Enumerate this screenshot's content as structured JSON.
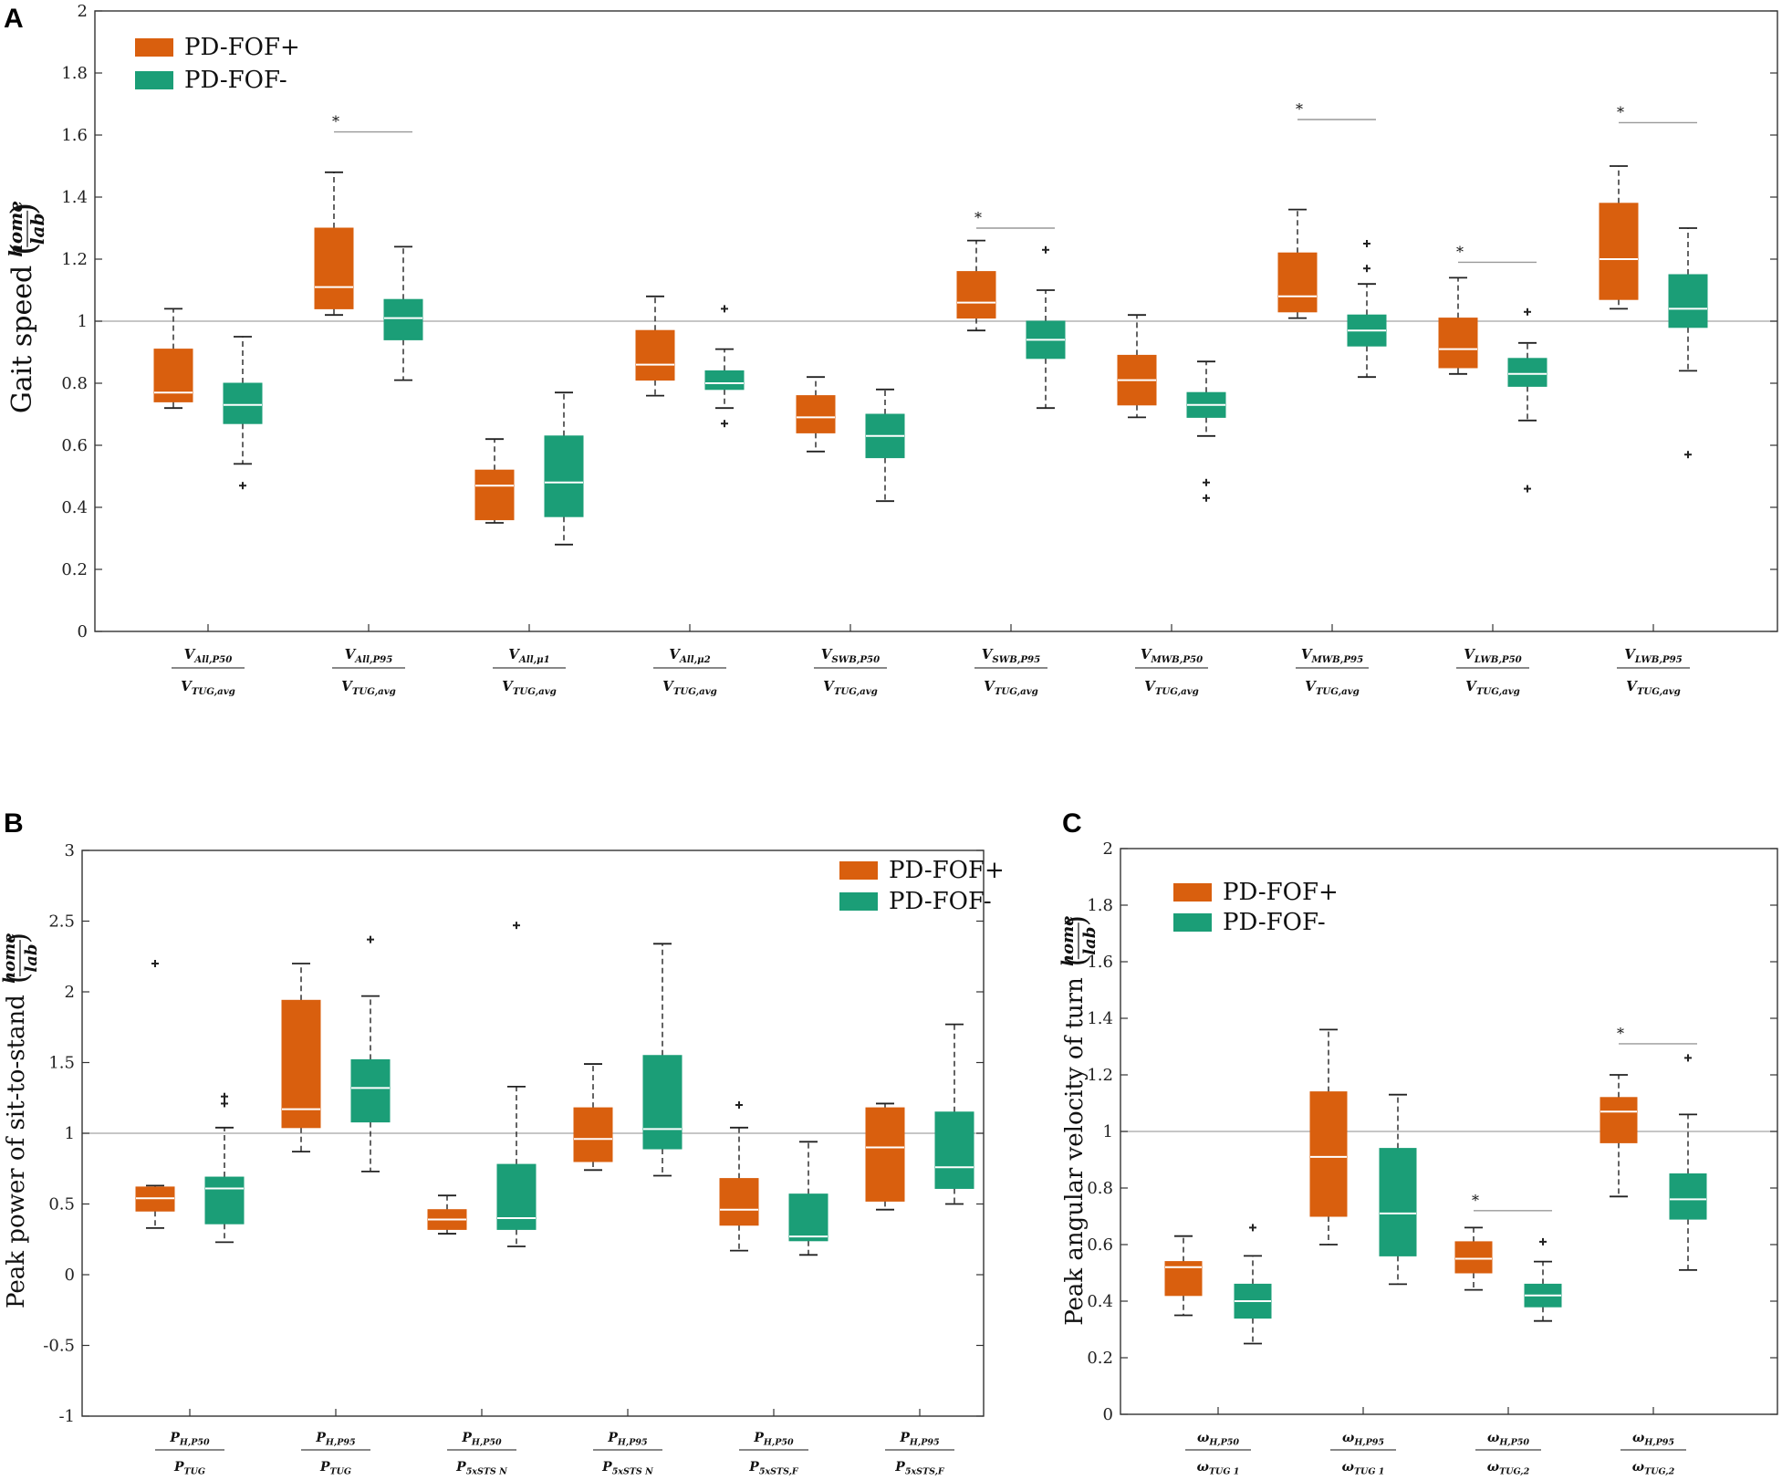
{
  "colors": {
    "fof_plus": "#D95F0E",
    "fof_minus": "#1B9E77",
    "ref": "#b4b4b4"
  },
  "chart_data": [
    {
      "type": "box",
      "panel_label": "A",
      "ylabel": "Gait speed",
      "ylabel_unit": {
        "num": "home",
        "den": "lab"
      },
      "ylim": [
        0,
        2
      ],
      "yticks": [
        "0",
        "0.2",
        "0.4",
        "0.6",
        "0.8",
        "1",
        "1.2",
        "1.4",
        "1.6",
        "1.8",
        "2"
      ],
      "ref_line": 1,
      "legend": {
        "position": "top-left",
        "entries": [
          "PD-FOF+",
          "PD-FOF-"
        ]
      },
      "categories": [
        {
          "num": "V_All,P50",
          "den": "V_TUG,avg"
        },
        {
          "num": "V_All,P95",
          "den": "V_TUG,avg"
        },
        {
          "num": "V_All,μ1",
          "den": "V_TUG,avg"
        },
        {
          "num": "V_All,μ2",
          "den": "V_TUG,avg"
        },
        {
          "num": "V_SWB,P50",
          "den": "V_TUG,avg"
        },
        {
          "num": "V_SWB,P95",
          "den": "V_TUG,avg"
        },
        {
          "num": "V_MWB,P50",
          "den": "V_TUG,avg"
        },
        {
          "num": "V_MWB,P95",
          "den": "V_TUG,avg"
        },
        {
          "num": "V_LWB,P50",
          "den": "V_TUG,avg"
        },
        {
          "num": "V_LWB,P95",
          "den": "V_TUG,avg"
        }
      ],
      "series": [
        {
          "name": "PD-FOF+",
          "boxes": [
            {
              "min": 0.72,
              "q1": 0.74,
              "median": 0.77,
              "q3": 0.91,
              "max": 1.04,
              "outliers": []
            },
            {
              "min": 1.02,
              "q1": 1.04,
              "median": 1.11,
              "q3": 1.3,
              "max": 1.48,
              "outliers": []
            },
            {
              "min": 0.35,
              "q1": 0.36,
              "median": 0.47,
              "q3": 0.52,
              "max": 0.62,
              "outliers": []
            },
            {
              "min": 0.76,
              "q1": 0.81,
              "median": 0.86,
              "q3": 0.97,
              "max": 1.08,
              "outliers": []
            },
            {
              "min": 0.58,
              "q1": 0.64,
              "median": 0.69,
              "q3": 0.76,
              "max": 0.82,
              "outliers": []
            },
            {
              "min": 0.97,
              "q1": 1.01,
              "median": 1.06,
              "q3": 1.16,
              "max": 1.26,
              "outliers": []
            },
            {
              "min": 0.69,
              "q1": 0.73,
              "median": 0.81,
              "q3": 0.89,
              "max": 1.02,
              "outliers": []
            },
            {
              "min": 1.01,
              "q1": 1.03,
              "median": 1.08,
              "q3": 1.22,
              "max": 1.36,
              "outliers": []
            },
            {
              "min": 0.83,
              "q1": 0.85,
              "median": 0.91,
              "q3": 1.01,
              "max": 1.14,
              "outliers": []
            },
            {
              "min": 1.04,
              "q1": 1.07,
              "median": 1.2,
              "q3": 1.38,
              "max": 1.5,
              "outliers": []
            }
          ]
        },
        {
          "name": "PD-FOF-",
          "boxes": [
            {
              "min": 0.54,
              "q1": 0.67,
              "median": 0.73,
              "q3": 0.8,
              "max": 0.95,
              "outliers": [
                0.47
              ]
            },
            {
              "min": 0.81,
              "q1": 0.94,
              "median": 1.01,
              "q3": 1.07,
              "max": 1.24,
              "outliers": []
            },
            {
              "min": 0.28,
              "q1": 0.37,
              "median": 0.48,
              "q3": 0.63,
              "max": 0.77,
              "outliers": []
            },
            {
              "min": 0.72,
              "q1": 0.78,
              "median": 0.8,
              "q3": 0.84,
              "max": 0.91,
              "outliers": [
                1.04,
                0.67
              ]
            },
            {
              "min": 0.42,
              "q1": 0.56,
              "median": 0.63,
              "q3": 0.7,
              "max": 0.78,
              "outliers": []
            },
            {
              "min": 0.72,
              "q1": 0.88,
              "median": 0.94,
              "q3": 1.0,
              "max": 1.1,
              "outliers": [
                1.23
              ]
            },
            {
              "min": 0.63,
              "q1": 0.69,
              "median": 0.73,
              "q3": 0.77,
              "max": 0.87,
              "outliers": [
                0.48,
                0.43
              ]
            },
            {
              "min": 0.82,
              "q1": 0.92,
              "median": 0.97,
              "q3": 1.02,
              "max": 1.12,
              "outliers": [
                1.25,
                1.17
              ]
            },
            {
              "min": 0.68,
              "q1": 0.79,
              "median": 0.83,
              "q3": 0.88,
              "max": 0.93,
              "outliers": [
                1.03,
                0.46
              ]
            },
            {
              "min": 0.84,
              "q1": 0.98,
              "median": 1.04,
              "q3": 1.15,
              "max": 1.3,
              "outliers": [
                0.57
              ]
            }
          ]
        }
      ],
      "significance": [
        {
          "category": 1,
          "y": 1.61,
          "label": "*"
        },
        {
          "category": 5,
          "y": 1.3,
          "label": "*"
        },
        {
          "category": 7,
          "y": 1.65,
          "label": "*"
        },
        {
          "category": 8,
          "y": 1.19,
          "label": "*"
        },
        {
          "category": 9,
          "y": 1.64,
          "label": "*"
        }
      ]
    },
    {
      "type": "box",
      "panel_label": "B",
      "ylabel": "Peak power of sit-to-stand",
      "ylabel_unit": {
        "num": "home",
        "den": "lab"
      },
      "ylim": [
        -1,
        3
      ],
      "yticks": [
        "-1",
        "-0.5",
        "0",
        "0.5",
        "1",
        "1.5",
        "2",
        "2.5",
        "3"
      ],
      "ref_line": 1,
      "legend": {
        "position": "top-right",
        "entries": [
          "PD-FOF+",
          "PD-FOF-"
        ]
      },
      "categories": [
        {
          "num": "P_H,P50",
          "den": "P_TUG"
        },
        {
          "num": "P_H,P95",
          "den": "P_TUG"
        },
        {
          "num": "P_H,P50",
          "den": "P_5xSTS N"
        },
        {
          "num": "P_H,P95",
          "den": "P_5xSTS N"
        },
        {
          "num": "P_H,P50",
          "den": "P_5xSTS,F"
        },
        {
          "num": "P_H,P95",
          "den": "P_5xSTS,F"
        }
      ],
      "series": [
        {
          "name": "PD-FOF+",
          "boxes": [
            {
              "min": 0.33,
              "q1": 0.45,
              "median": 0.54,
              "q3": 0.62,
              "max": 0.63,
              "outliers": [
                2.2
              ]
            },
            {
              "min": 0.87,
              "q1": 1.04,
              "median": 1.17,
              "q3": 1.94,
              "max": 2.2,
              "outliers": []
            },
            {
              "min": 0.29,
              "q1": 0.32,
              "median": 0.39,
              "q3": 0.46,
              "max": 0.56,
              "outliers": []
            },
            {
              "min": 0.74,
              "q1": 0.8,
              "median": 0.96,
              "q3": 1.18,
              "max": 1.49,
              "outliers": []
            },
            {
              "min": 0.17,
              "q1": 0.35,
              "median": 0.46,
              "q3": 0.68,
              "max": 1.04,
              "outliers": [
                1.2
              ]
            },
            {
              "min": 0.46,
              "q1": 0.52,
              "median": 0.9,
              "q3": 1.18,
              "max": 1.21,
              "outliers": []
            }
          ]
        },
        {
          "name": "PD-FOF-",
          "boxes": [
            {
              "min": 0.23,
              "q1": 0.36,
              "median": 0.61,
              "q3": 0.69,
              "max": 1.04,
              "outliers": [
                1.26,
                1.21
              ]
            },
            {
              "min": 0.73,
              "q1": 1.08,
              "median": 1.32,
              "q3": 1.52,
              "max": 1.97,
              "outliers": [
                2.37
              ]
            },
            {
              "min": 0.2,
              "q1": 0.32,
              "median": 0.4,
              "q3": 0.78,
              "max": 1.33,
              "outliers": [
                2.47
              ]
            },
            {
              "min": 0.7,
              "q1": 0.89,
              "median": 1.03,
              "q3": 1.55,
              "max": 2.34,
              "outliers": []
            },
            {
              "min": 0.14,
              "q1": 0.24,
              "median": 0.27,
              "q3": 0.57,
              "max": 0.94,
              "outliers": []
            },
            {
              "min": 0.5,
              "q1": 0.61,
              "median": 0.76,
              "q3": 1.15,
              "max": 1.77,
              "outliers": []
            }
          ]
        }
      ],
      "significance": []
    },
    {
      "type": "box",
      "panel_label": "C",
      "ylabel": "Peak angular velocity of turn",
      "ylabel_unit": {
        "num": "home",
        "den": "lab"
      },
      "ylim": [
        0,
        2
      ],
      "yticks": [
        "0",
        "0.2",
        "0.4",
        "0.6",
        "0.8",
        "1",
        "1.2",
        "1.4",
        "1.6",
        "1.8",
        "2"
      ],
      "ref_line": 1,
      "legend": {
        "position": "top-left",
        "entries": [
          "PD-FOF+",
          "PD-FOF-"
        ]
      },
      "categories": [
        {
          "num": "ω_H,P50",
          "den": "ω_TUG 1"
        },
        {
          "num": "ω_H,P95",
          "den": "ω_TUG 1"
        },
        {
          "num": "ω_H,P50",
          "den": "ω_TUG,2"
        },
        {
          "num": "ω_H,P95",
          "den": "ω_TUG,2"
        }
      ],
      "series": [
        {
          "name": "PD-FOF+",
          "boxes": [
            {
              "min": 0.35,
              "q1": 0.42,
              "median": 0.52,
              "q3": 0.54,
              "max": 0.63,
              "outliers": []
            },
            {
              "min": 0.6,
              "q1": 0.7,
              "median": 0.91,
              "q3": 1.14,
              "max": 1.36,
              "outliers": []
            },
            {
              "min": 0.44,
              "q1": 0.5,
              "median": 0.55,
              "q3": 0.61,
              "max": 0.66,
              "outliers": []
            },
            {
              "min": 0.77,
              "q1": 0.96,
              "median": 1.07,
              "q3": 1.12,
              "max": 1.2,
              "outliers": []
            }
          ]
        },
        {
          "name": "PD-FOF-",
          "boxes": [
            {
              "min": 0.25,
              "q1": 0.34,
              "median": 0.4,
              "q3": 0.46,
              "max": 0.56,
              "outliers": [
                0.66
              ]
            },
            {
              "min": 0.46,
              "q1": 0.56,
              "median": 0.71,
              "q3": 0.94,
              "max": 1.13,
              "outliers": []
            },
            {
              "min": 0.33,
              "q1": 0.38,
              "median": 0.42,
              "q3": 0.46,
              "max": 0.54,
              "outliers": [
                0.61
              ]
            },
            {
              "min": 0.51,
              "q1": 0.69,
              "median": 0.76,
              "q3": 0.85,
              "max": 1.06,
              "outliers": [
                1.26
              ]
            }
          ]
        }
      ],
      "significance": [
        {
          "category": 2,
          "y": 0.72,
          "label": "*"
        },
        {
          "category": 3,
          "y": 1.31,
          "label": "*"
        }
      ]
    }
  ]
}
